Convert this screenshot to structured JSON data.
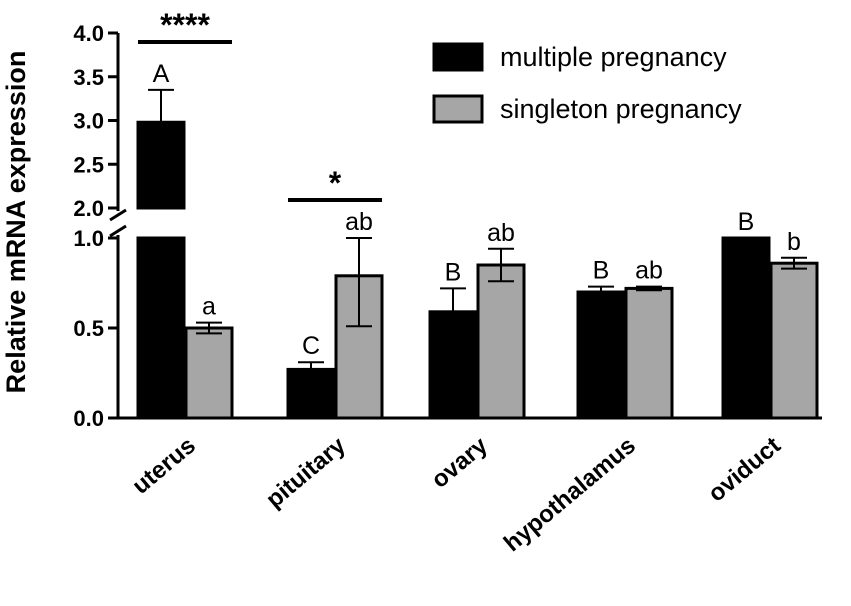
{
  "chart_data": {
    "type": "bar",
    "ylabel": "Relative mRNA expression",
    "xlabel": "",
    "categories": [
      "uterus",
      "pituitary",
      "ovary",
      "hypothalamus",
      "oviduct"
    ],
    "y_axis_broken": true,
    "y_segments": [
      {
        "range": [
          0,
          1.0
        ],
        "ticks": [
          0.0,
          0.5,
          1.0
        ],
        "tick_labels": [
          "0.0",
          "0.5",
          "1.0"
        ]
      },
      {
        "range": [
          2.0,
          4.0
        ],
        "ticks": [
          2.0,
          2.5,
          3.0,
          3.5,
          4.0
        ],
        "tick_labels": [
          "2.0",
          "2.5",
          "3.0",
          "3.5",
          "4.0"
        ]
      }
    ],
    "series": [
      {
        "name": "multiple pregnancy",
        "color": "#000000",
        "values": [
          2.98,
          0.27,
          0.59,
          0.7,
          1.0
        ],
        "errors": [
          0.37,
          0.04,
          0.13,
          0.03,
          0.0
        ],
        "letters": [
          "A",
          "C",
          "B",
          "B",
          "B"
        ]
      },
      {
        "name": "singleton pregnancy",
        "color": "#a6a6a6",
        "values": [
          0.5,
          0.79,
          0.85,
          0.72,
          0.86
        ],
        "errors": [
          0.03,
          0.28,
          0.09,
          0.01,
          0.03
        ],
        "letters": [
          "a",
          "ab",
          "ab",
          "ab",
          "b"
        ]
      }
    ],
    "significance": [
      {
        "category": "uterus",
        "label": "****"
      },
      {
        "category": "pituitary",
        "label": "*"
      }
    ],
    "legend_position": "top-right"
  }
}
